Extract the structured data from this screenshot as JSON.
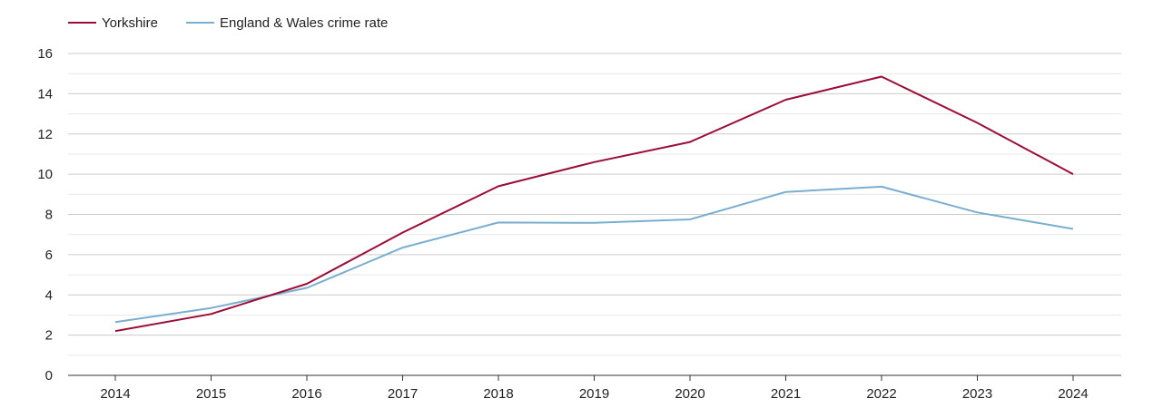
{
  "chart_data": {
    "type": "line",
    "title": "",
    "xlabel": "",
    "ylabel": "",
    "x": [
      "2014",
      "2015",
      "2016",
      "2017",
      "2018",
      "2019",
      "2020",
      "2021",
      "2022",
      "2023",
      "2024"
    ],
    "ylim": [
      0,
      16
    ],
    "yticks": [
      "0",
      "2",
      "4",
      "6",
      "8",
      "10",
      "12",
      "14",
      "16"
    ],
    "grid": true,
    "legend_position": "top-left",
    "series": [
      {
        "name": "Yorkshire",
        "color": "#9b0d36",
        "values": [
          2.2,
          3.05,
          4.55,
          7.1,
          9.4,
          10.6,
          11.6,
          13.7,
          14.85,
          12.55,
          10.0
        ]
      },
      {
        "name": "England & Wales crime rate",
        "color": "#7aaed0",
        "values": [
          2.65,
          3.35,
          4.35,
          6.35,
          7.6,
          7.58,
          7.75,
          9.12,
          9.38,
          8.1,
          7.28
        ]
      }
    ]
  }
}
